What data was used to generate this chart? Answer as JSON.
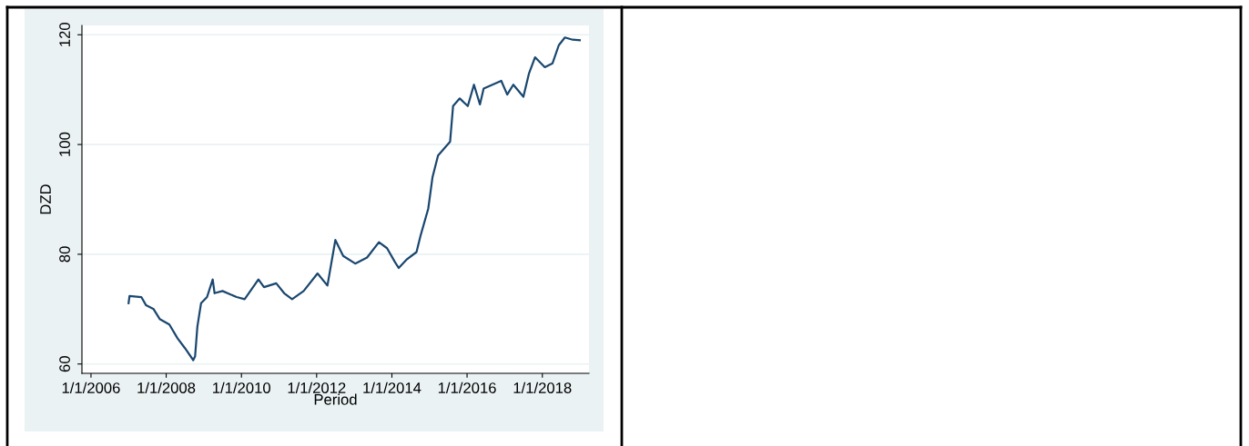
{
  "chart_data": {
    "type": "line",
    "xlabel": "Period",
    "ylabel": "DZD",
    "x": [
      "2007-01-01",
      "2007-01-10",
      "2007-05-05",
      "2007-06-20",
      "2007-09-01",
      "2007-10-30",
      "2008-02-01",
      "2008-04-20",
      "2008-07-01",
      "2008-09-20",
      "2008-10-08",
      "2008-10-30",
      "2008-12-05",
      "2009-02-01",
      "2009-03-28",
      "2009-04-15",
      "2009-07-01",
      "2009-11-15",
      "2010-02-01",
      "2010-06-15",
      "2010-08-08",
      "2010-12-05",
      "2011-02-20",
      "2011-05-08",
      "2011-08-28",
      "2012-01-10",
      "2012-04-15",
      "2012-07-01",
      "2012-09-15",
      "2013-01-10",
      "2013-05-05",
      "2013-08-28",
      "2013-11-15",
      "2014-01-30",
      "2014-03-08",
      "2014-05-22",
      "2014-08-28",
      "2014-10-05",
      "2014-12-20",
      "2015-01-30",
      "2015-03-25",
      "2015-07-20",
      "2015-08-18",
      "2015-10-22",
      "2016-01-08",
      "2016-03-08",
      "2016-05-05",
      "2016-06-10",
      "2016-11-28",
      "2017-01-25",
      "2017-03-25",
      "2017-07-01",
      "2017-08-25",
      "2017-10-22",
      "2018-01-25",
      "2018-04-10",
      "2018-06-10",
      "2018-08-08",
      "2018-10-22",
      "2018-12-31"
    ],
    "series": [
      {
        "color": "#1a476f",
        "values": [
          71.1,
          72.4,
          72.2,
          70.7,
          70.0,
          68.2,
          67.2,
          64.7,
          62.9,
          60.7,
          61.4,
          66.8,
          71.1,
          72.2,
          75.4,
          72.9,
          73.3,
          72.2,
          71.8,
          75.4,
          74.0,
          74.7,
          72.9,
          71.8,
          73.3,
          76.5,
          74.3,
          82.6,
          79.7,
          78.3,
          79.4,
          82.2,
          81.1,
          78.6,
          77.5,
          79.0,
          80.4,
          83.3,
          88.3,
          94.0,
          98.0,
          100.5,
          107.0,
          108.4,
          107.0,
          110.9,
          107.3,
          110.2,
          111.6,
          109.1,
          110.9,
          108.7,
          113.0,
          115.9,
          114.1,
          114.8,
          118.1,
          119.5,
          119.1,
          119.0
        ]
      }
    ],
    "xlim": [
      "2005-10-05",
      "2019-03-30"
    ],
    "xticks": [
      {
        "value": "2006-01-01",
        "label": "1/1/2006"
      },
      {
        "value": "2008-01-01",
        "label": "1/1/2008"
      },
      {
        "value": "2010-01-01",
        "label": "1/1/2010"
      },
      {
        "value": "2012-01-01",
        "label": "1/1/2012"
      },
      {
        "value": "2014-01-01",
        "label": "1/1/2014"
      },
      {
        "value": "2016-01-01",
        "label": "1/1/2016"
      },
      {
        "value": "2018-01-01",
        "label": "1/1/2018"
      }
    ],
    "ylim": [
      58.3,
      121.7
    ],
    "yticks": [
      60,
      80,
      100,
      120
    ],
    "grid": "y",
    "legend": false,
    "marker": "none",
    "line_style": "solid"
  }
}
